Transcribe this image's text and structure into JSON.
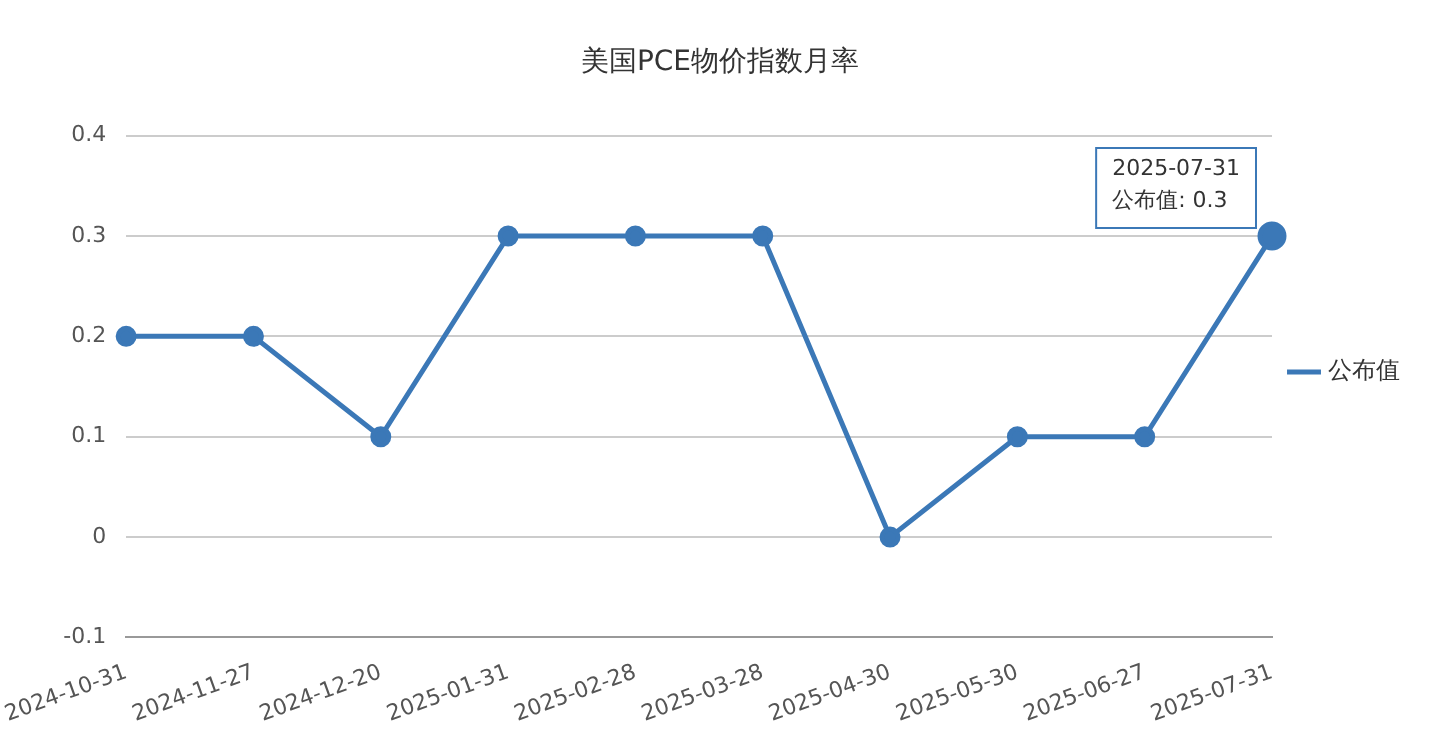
{
  "chart_data": {
    "type": "line",
    "title": "美国PCE物价指数月率",
    "categories": [
      "2024-10-31",
      "2024-11-27",
      "2024-12-20",
      "2025-01-31",
      "2025-02-28",
      "2025-03-28",
      "2025-04-30",
      "2025-05-30",
      "2025-06-27",
      "2025-07-31"
    ],
    "series": [
      {
        "name": "公布值",
        "color": "#3b78b7",
        "values": [
          0.2,
          0.2,
          0.1,
          0.3,
          0.3,
          0.3,
          0,
          0.1,
          0.1,
          0.3
        ]
      }
    ],
    "ylim": [
      -0.1,
      0.4
    ],
    "yticks": [
      -0.1,
      0,
      0.1,
      0.2,
      0.3,
      0.4
    ],
    "grid": "y",
    "legend": "right",
    "marker": "circle",
    "line_style": "solid",
    "annotations": [
      {
        "text": "2025-07-31\n公布值: 0.3",
        "x": "2025-07-31",
        "y": 0.3
      }
    ]
  }
}
